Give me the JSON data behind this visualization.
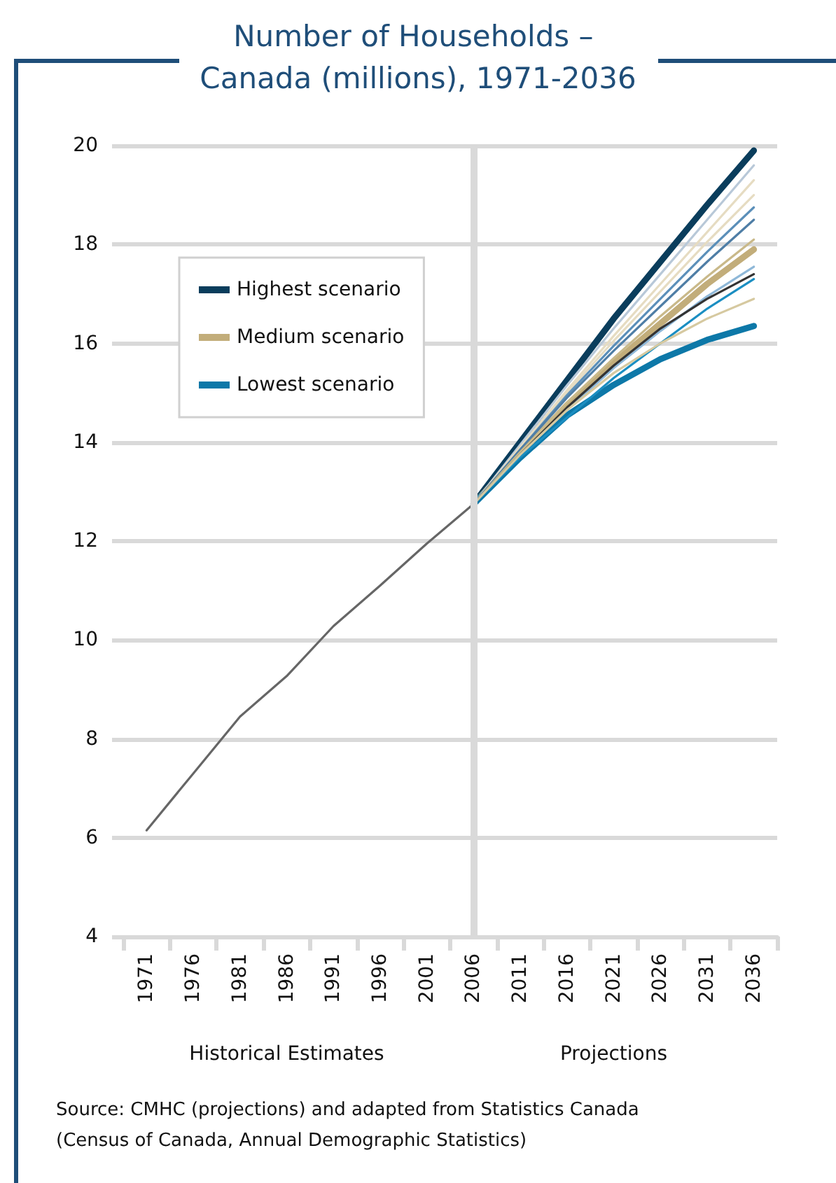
{
  "chart_data": {
    "type": "line",
    "title": "Number of Households – Canada (millions), 1971-2036",
    "categories": [
      "1971",
      "1976",
      "1981",
      "1986",
      "1991",
      "1996",
      "2001",
      "2006",
      "2011",
      "2016",
      "2021",
      "2026",
      "2031",
      "2036"
    ],
    "series": [
      {
        "color": "#666666",
        "values": [
          6.15,
          7.3,
          8.45,
          9.27,
          10.28,
          11.1,
          11.95,
          12.75,
          null,
          null,
          null,
          null,
          null,
          null
        ]
      },
      {
        "color": "#b8c8d8",
        "values": [
          null,
          null,
          null,
          null,
          null,
          null,
          null,
          12.75,
          13.95,
          15.15,
          16.3,
          17.4,
          18.5,
          19.6
        ]
      },
      {
        "color": "#e6dcc2",
        "values": [
          null,
          null,
          null,
          null,
          null,
          null,
          null,
          12.75,
          13.9,
          15.05,
          16.15,
          17.2,
          18.25,
          19.3
        ]
      },
      {
        "color": "#e6dcc2",
        "values": [
          null,
          null,
          null,
          null,
          null,
          null,
          null,
          12.75,
          13.9,
          15.0,
          16.05,
          17.05,
          18.05,
          19.0
        ]
      },
      {
        "color": "#5b8fb9",
        "values": [
          null,
          null,
          null,
          null,
          null,
          null,
          null,
          12.75,
          13.85,
          14.95,
          15.95,
          16.9,
          17.85,
          18.75
        ]
      },
      {
        "color": "#4f7ea6",
        "values": [
          null,
          null,
          null,
          null,
          null,
          null,
          null,
          12.75,
          13.85,
          14.9,
          15.85,
          16.75,
          17.65,
          18.5
        ]
      },
      {
        "color": "#c9b98a",
        "values": [
          null,
          null,
          null,
          null,
          null,
          null,
          null,
          12.75,
          13.8,
          14.8,
          15.7,
          16.55,
          17.35,
          18.1
        ]
      },
      {
        "color": "#8fb8d8",
        "values": [
          null,
          null,
          null,
          null,
          null,
          null,
          null,
          12.75,
          13.75,
          14.65,
          15.5,
          16.25,
          16.95,
          17.55
        ]
      },
      {
        "color": "#333333",
        "values": [
          null,
          null,
          null,
          null,
          null,
          null,
          null,
          12.75,
          13.75,
          14.7,
          15.55,
          16.3,
          16.9,
          17.4
        ]
      },
      {
        "color": "#1b8ec2",
        "values": [
          null,
          null,
          null,
          null,
          null,
          null,
          null,
          12.75,
          13.7,
          14.5,
          15.3,
          16.0,
          16.7,
          17.3
        ]
      },
      {
        "color": "#d6c9a0",
        "values": [
          null,
          null,
          null,
          null,
          null,
          null,
          null,
          12.75,
          13.75,
          14.65,
          15.4,
          16.0,
          16.5,
          16.9
        ]
      },
      {
        "name": "Highest scenario",
        "color": "#0a3d5c",
        "values": [
          null,
          null,
          null,
          null,
          null,
          null,
          null,
          12.75,
          14.0,
          15.25,
          16.5,
          17.65,
          18.8,
          19.9
        ]
      },
      {
        "name": "Medium scenario",
        "color": "#c2ad7a",
        "values": [
          null,
          null,
          null,
          null,
          null,
          null,
          null,
          12.75,
          13.75,
          14.75,
          15.6,
          16.4,
          17.2,
          17.9
        ]
      },
      {
        "name": "Lowest scenario",
        "color": "#0d78a8",
        "values": [
          null,
          null,
          null,
          null,
          null,
          null,
          null,
          12.75,
          13.69,
          14.54,
          15.16,
          15.68,
          16.07,
          16.35
        ]
      }
    ],
    "ylim": [
      4,
      20
    ],
    "yticks": [
      4,
      6,
      8,
      10,
      12,
      14,
      16,
      18,
      20
    ],
    "ref_lines": [
      {
        "axis": "x",
        "value": "2006",
        "color": "#d9d9d9"
      }
    ],
    "annotations": [
      "Historical Estimates",
      "Projections",
      "Source: CMHC (projections) and adapted from Statistics Canada (Census of Canada, Annual Demographic Statistics)"
    ],
    "grid": "y",
    "legend": "top left",
    "marker": "none",
    "line_style": "solid"
  }
}
